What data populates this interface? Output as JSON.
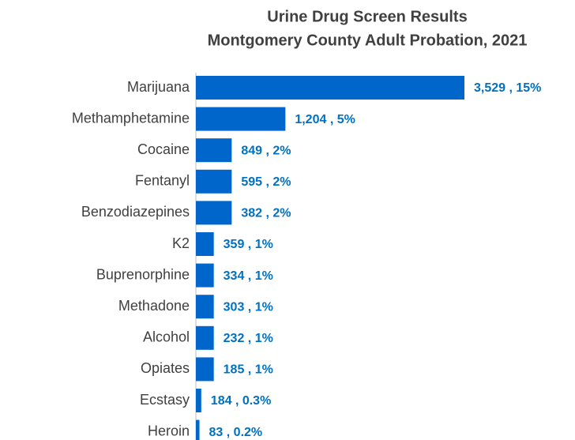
{
  "chart_data": {
    "type": "bar",
    "orientation": "horizontal",
    "title": "Urine Drug Screen Results",
    "subtitle": "Montgomery County Adult Probation, 2021",
    "categories": [
      "Marijuana",
      "Methamphetamine",
      "Cocaine",
      "Fentanyl",
      "Benzodiazepines",
      "K2",
      "Buprenorphine",
      "Methadone",
      "Alcohol",
      "Opiates",
      "Ecstasy",
      "Heroin"
    ],
    "counts": [
      3529,
      1204,
      849,
      595,
      382,
      359,
      334,
      303,
      232,
      185,
      184,
      83
    ],
    "values": [
      15,
      5,
      2,
      2,
      2,
      1,
      1,
      1,
      1,
      1,
      0.3,
      0.2
    ],
    "value_labels": [
      "3,529 , 15%",
      "1,204 , 5%",
      "849 , 2%",
      "595 , 2%",
      "382 , 2%",
      "359 , 1%",
      "334 , 1%",
      "303 , 1%",
      "232 , 1%",
      "185 , 1%",
      "184 , 0.3%",
      "83 , 0.2%"
    ],
    "color": "#0066cc"
  }
}
